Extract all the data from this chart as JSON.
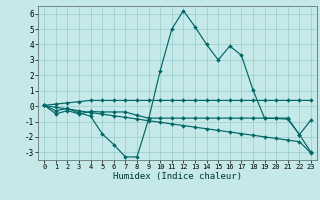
{
  "xlabel": "Humidex (Indice chaleur)",
  "background_color": "#c5e8e8",
  "grid_color": "#99cccc",
  "line_color": "#006666",
  "x": [
    0,
    1,
    2,
    3,
    4,
    5,
    6,
    7,
    8,
    9,
    10,
    11,
    12,
    13,
    14,
    15,
    16,
    17,
    18,
    19,
    20,
    21,
    22,
    23
  ],
  "series1": [
    0.05,
    -0.3,
    -0.15,
    -0.45,
    -0.65,
    -1.8,
    -2.5,
    -3.3,
    -3.3,
    -0.85,
    2.3,
    5.0,
    6.2,
    5.15,
    4.0,
    3.0,
    3.9,
    3.3,
    1.05,
    -0.8,
    -0.8,
    -0.85,
    -1.85,
    -0.9
  ],
  "series2": [
    0.05,
    -0.5,
    -0.3,
    -0.5,
    -0.35,
    -0.38,
    -0.38,
    -0.38,
    -0.6,
    -0.78,
    -0.78,
    -0.78,
    -0.78,
    -0.78,
    -0.78,
    -0.78,
    -0.78,
    -0.78,
    -0.78,
    -0.78,
    -0.78,
    -0.78,
    -1.85,
    -3.0
  ],
  "series3": [
    0.05,
    0.13,
    0.21,
    0.29,
    0.37,
    0.37,
    0.37,
    0.37,
    0.37,
    0.37,
    0.37,
    0.37,
    0.37,
    0.37,
    0.37,
    0.37,
    0.37,
    0.37,
    0.37,
    0.37,
    0.37,
    0.37,
    0.37,
    0.37
  ],
  "series4": [
    0.05,
    -0.08,
    -0.18,
    -0.3,
    -0.42,
    -0.52,
    -0.63,
    -0.73,
    -0.84,
    -0.95,
    -1.05,
    -1.16,
    -1.26,
    -1.37,
    -1.47,
    -1.58,
    -1.68,
    -1.79,
    -1.89,
    -2.0,
    -2.1,
    -2.21,
    -2.31,
    -3.05
  ],
  "ylim": [
    -3.5,
    6.5
  ],
  "xlim": [
    -0.5,
    23.5
  ],
  "yticks": [
    -3,
    -2,
    -1,
    0,
    1,
    2,
    3,
    4,
    5,
    6
  ],
  "xticks": [
    0,
    1,
    2,
    3,
    4,
    5,
    6,
    7,
    8,
    9,
    10,
    11,
    12,
    13,
    14,
    15,
    16,
    17,
    18,
    19,
    20,
    21,
    22,
    23
  ]
}
